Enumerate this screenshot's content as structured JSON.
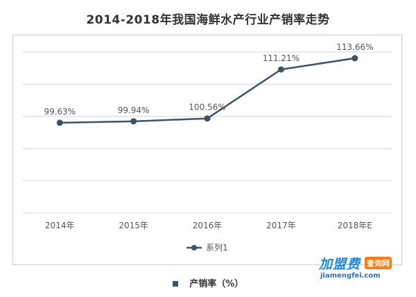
{
  "title": "2014-2018年我国海鲜水产行业产销率走势",
  "caption": {
    "text": "产销率（%）"
  },
  "watermark": {
    "brand": "加盟费",
    "tag": "查询网",
    "url": "jiamengfei.com"
  },
  "colors": {
    "line": "#3d5366",
    "grid": "#d6d6d6",
    "text": "#555555"
  },
  "chart_data": {
    "type": "line",
    "title": "2014-2018年我国海鲜水产行业产销率走势",
    "categories": [
      "2014年",
      "2015年",
      "2016年",
      "2017年",
      "2018年E"
    ],
    "series": [
      {
        "name": "系列1",
        "values": [
          99.63,
          99.94,
          100.56,
          111.21,
          113.66
        ],
        "labels": [
          "99.63%",
          "99.94%",
          "100.56%",
          "111.21%",
          "113.66%"
        ]
      }
    ],
    "ylim": [
      80,
      115
    ],
    "grid": true,
    "legend": "bottom-center",
    "ytick_labels_visible": false
  }
}
